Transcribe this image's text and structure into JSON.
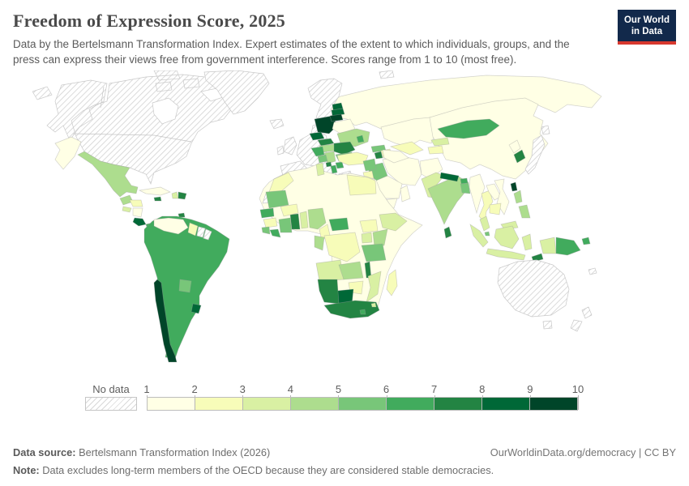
{
  "header": {
    "title": "Freedom of Expression Score, 2025",
    "subtitle": "Data by the Bertelsmann Transformation Index. Expert estimates of the extent to which individuals, groups, and the press can express their views free from government interference. Scores range from 1 to 10 (most free).",
    "logo": {
      "line1": "Our World",
      "line2": "in Data",
      "bg": "#12294b",
      "accent": "#d7382e"
    }
  },
  "legend": {
    "no_data_label": "No data",
    "ticks": [
      "1",
      "2",
      "3",
      "4",
      "5",
      "6",
      "7",
      "8",
      "9",
      "10"
    ],
    "palette": [
      "#ffffe5",
      "#f7fcb9",
      "#d9f0a3",
      "#addd8e",
      "#78c679",
      "#41ab5d",
      "#238443",
      "#006837",
      "#004529"
    ],
    "bin_ranges": [
      "1–2",
      "2–3",
      "3–4",
      "4–5",
      "5–6",
      "6–7",
      "7–8",
      "8–9",
      "9–10"
    ],
    "hatch_line_color": "#d4d4d4"
  },
  "footer": {
    "source_label": "Data source:",
    "source_text": "Bertelsmann Transformation Index (2026)",
    "right_text": "OurWorldinData.org/democracy | CC BY",
    "note_label": "Note:",
    "note_text": "Data excludes long-term members of the OECD because they are considered stable democracies."
  },
  "chart_data": {
    "type": "choropleth",
    "title": "Freedom of Expression Score, 2025",
    "value_range": [
      1,
      10
    ],
    "legend_position": "bottom",
    "no_data": [
      "United States",
      "Canada",
      "Greenland",
      "Iceland",
      "United Kingdom",
      "Ireland",
      "Norway",
      "Sweden",
      "Finland",
      "Denmark",
      "Germany",
      "France",
      "Netherlands",
      "Belgium",
      "Switzerland",
      "Austria",
      "Spain",
      "Portugal",
      "Italy",
      "Greece",
      "Japan",
      "Israel",
      "Australia",
      "New Zealand",
      "New Caledonia",
      "Western Sahara",
      "Suriname",
      "French Guiana"
    ],
    "bins": [
      {
        "range": "1–2",
        "color": "#ffffe5",
        "countries": [
          "Russia",
          "China",
          "Belarus",
          "Venezuela",
          "Cuba",
          "Nicaragua",
          "Saudi Arabia",
          "Iran",
          "Afghanistan",
          "Yemen",
          "Oman",
          "Myanmar",
          "Laos",
          "Vietnam",
          "North Korea",
          "Kazakhstan",
          "Turkmenistan",
          "Algeria",
          "Libya",
          "Mali",
          "Niger",
          "Chad",
          "Sudan",
          "Eritrea",
          "Somalia"
        ]
      },
      {
        "range": "2–3",
        "color": "#f7fcb9",
        "countries": [
          "Turkey",
          "Morocco",
          "Egypt",
          "Jordan",
          "Azerbaijan",
          "Uzbekistan",
          "Tajikistan",
          "Thailand",
          "Cambodia",
          "Honduras",
          "Guyana",
          "Zimbabwe",
          "Madagascar",
          "Burkina Faso",
          "Guinea",
          "Cameroon",
          "Democratic Republic of Congo",
          "South Sudan"
        ]
      },
      {
        "range": "3–4",
        "color": "#d9f0a3",
        "countries": [
          "Pakistan",
          "Kyrgyzstan",
          "Tunisia",
          "Benin",
          "Togo",
          "Ethiopia",
          "Uganda",
          "Angola",
          "Malaysia",
          "Indonesia",
          "Mozambique",
          "Eswatini",
          "El Salvador",
          "Haiti"
        ]
      },
      {
        "range": "4–5",
        "color": "#addd8e",
        "countries": [
          "India",
          "Ukraine",
          "Serbia",
          "Hungary",
          "Nigeria",
          "Kenya",
          "Zambia",
          "Philippines",
          "Mexico",
          "Guatemala",
          "Gabon",
          "Republic of the Congo"
        ]
      },
      {
        "range": "5–6",
        "color": "#78c679",
        "countries": [
          "Paraguay",
          "Bulgaria",
          "Bosnia and Herzegovina",
          "Georgia",
          "Syria",
          "Iraq",
          "Bangladesh",
          "Tanzania",
          "Cote d'Ivoire",
          "Sierra Leone",
          "Mauritania",
          "Singapore"
        ]
      },
      {
        "range": "6–7",
        "color": "#41ab5d",
        "countries": [
          "Colombia",
          "Ecuador",
          "Peru",
          "Brazil",
          "Bolivia",
          "Argentina",
          "Panama",
          "Mongolia",
          "Papua New Guinea",
          "Bhutan",
          "Senegal",
          "Liberia",
          "Central African Republic",
          "Moldova",
          "North Macedonia",
          "Croatia",
          "Albania",
          "Lesotho"
        ]
      },
      {
        "range": "7–8",
        "color": "#238443",
        "countries": [
          "Ghana",
          "South Africa",
          "Namibia",
          "Malawi",
          "Sri Lanka",
          "South Korea",
          "Jamaica",
          "Dominican Republic",
          "Romania",
          "Slovakia",
          "Armenia",
          "Montenegro",
          "Timor-Leste",
          "Trinidad and Tobago"
        ]
      },
      {
        "range": "8–9",
        "color": "#006837",
        "countries": [
          "Nepal",
          "Botswana",
          "Uruguay",
          "Costa Rica",
          "Estonia",
          "Latvia",
          "Czechia"
        ]
      },
      {
        "range": "9–10",
        "color": "#004529",
        "countries": [
          "Chile",
          "Taiwan",
          "Poland",
          "Lithuania"
        ]
      }
    ]
  },
  "map": {
    "sea_color": "#ffffff",
    "border_color": "#c9c9c9",
    "country_border_color": "#9e9e9e",
    "shapes": [
      [
        "canada-usa",
        0
      ],
      [
        "hudson-bay",
        -1
      ],
      [
        "us-canada-border",
        -2
      ],
      [
        "greenland",
        0
      ],
      [
        "arctic-fragment",
        0
      ],
      [
        "iceland",
        0
      ],
      [
        "kamchatka",
        1
      ],
      [
        "russia",
        1
      ],
      [
        "svalbard",
        0
      ],
      [
        "kazakhstan",
        1
      ],
      [
        "china",
        1
      ],
      [
        "mongolia",
        6
      ],
      [
        "north-korea",
        1
      ],
      [
        "south-korea",
        7
      ],
      [
        "japan",
        0
      ],
      [
        "taiwan",
        9
      ],
      [
        "western-europe",
        0
      ],
      [
        "uk-ireland",
        0
      ],
      [
        "poland",
        9
      ],
      [
        "estonia",
        8
      ],
      [
        "latvia",
        8
      ],
      [
        "lithuania",
        9
      ],
      [
        "belarus",
        1
      ],
      [
        "ukraine",
        4
      ],
      [
        "moldova",
        6
      ],
      [
        "czechia",
        8
      ],
      [
        "slovakia",
        7
      ],
      [
        "hungary",
        4
      ],
      [
        "romania",
        7
      ],
      [
        "bulgaria",
        5
      ],
      [
        "serbia",
        4
      ],
      [
        "croatia",
        6
      ],
      [
        "bosnia",
        5
      ],
      [
        "montenegro",
        7
      ],
      [
        "north-macedonia",
        6
      ],
      [
        "albania",
        6
      ],
      [
        "turkey",
        2
      ],
      [
        "georgia",
        5
      ],
      [
        "armenia",
        7
      ],
      [
        "azerbaijan",
        2
      ],
      [
        "iran",
        1
      ],
      [
        "saudi-arabia",
        1
      ],
      [
        "yemen",
        1
      ],
      [
        "oman",
        1
      ],
      [
        "iraq",
        5
      ],
      [
        "syria",
        5
      ],
      [
        "jordan",
        2
      ],
      [
        "afghanistan",
        1
      ],
      [
        "pakistan",
        3
      ],
      [
        "uzbekistan",
        2
      ],
      [
        "turkmenistan",
        1
      ],
      [
        "kyrgyzstan",
        3
      ],
      [
        "tajikistan",
        2
      ],
      [
        "india",
        4
      ],
      [
        "nepal",
        8
      ],
      [
        "bhutan",
        6
      ],
      [
        "bangladesh",
        5
      ],
      [
        "sri-lanka",
        7
      ],
      [
        "myanmar",
        1
      ],
      [
        "thailand",
        2
      ],
      [
        "laos",
        1
      ],
      [
        "vietnam",
        1
      ],
      [
        "cambodia",
        2
      ],
      [
        "malaysia",
        3
      ],
      [
        "singapore",
        5
      ],
      [
        "indonesia",
        3
      ],
      [
        "papua-new-guinea",
        6
      ],
      [
        "timor-leste",
        7
      ],
      [
        "philippines",
        4
      ],
      [
        "australia",
        0
      ],
      [
        "new-zealand",
        0
      ],
      [
        "new-caledonia",
        0
      ],
      [
        "africa-mainland",
        1
      ],
      [
        "morocco",
        2
      ],
      [
        "western-sahara",
        0
      ],
      [
        "tunisia",
        3
      ],
      [
        "egypt",
        2
      ],
      [
        "mauritania",
        5
      ],
      [
        "senegal",
        6
      ],
      [
        "guinea",
        2
      ],
      [
        "sierra-leone",
        5
      ],
      [
        "liberia",
        6
      ],
      [
        "cote-divoire",
        5
      ],
      [
        "ghana",
        7
      ],
      [
        "togo-benin",
        3
      ],
      [
        "burkina-faso",
        2
      ],
      [
        "nigeria",
        4
      ],
      [
        "cameroon",
        2
      ],
      [
        "central-african-republic",
        6
      ],
      [
        "south-sudan",
        2
      ],
      [
        "ethiopia",
        3
      ],
      [
        "uganda",
        3
      ],
      [
        "kenya",
        4
      ],
      [
        "tanzania",
        5
      ],
      [
        "dr-congo",
        2
      ],
      [
        "gabon-congo",
        4
      ],
      [
        "angola",
        3
      ],
      [
        "zambia",
        4
      ],
      [
        "malawi",
        7
      ],
      [
        "mozambique",
        3
      ],
      [
        "zimbabwe",
        2
      ],
      [
        "botswana",
        8
      ],
      [
        "namibia",
        7
      ],
      [
        "south-africa",
        7
      ],
      [
        "lesotho",
        6
      ],
      [
        "eswatini",
        3
      ],
      [
        "madagascar",
        2
      ],
      [
        "mexico",
        4
      ],
      [
        "guatemala",
        4
      ],
      [
        "honduras",
        2
      ],
      [
        "el-salvador",
        3
      ],
      [
        "nicaragua",
        1
      ],
      [
        "costa-rica",
        8
      ],
      [
        "panama",
        6
      ],
      [
        "cuba",
        1
      ],
      [
        "jamaica",
        7
      ],
      [
        "haiti",
        3
      ],
      [
        "dominican-republic",
        7
      ],
      [
        "trinidad-and-tobago",
        7
      ],
      [
        "south-america-core",
        6
      ],
      [
        "venezuela",
        1
      ],
      [
        "guyana",
        2
      ],
      [
        "suriname",
        0
      ],
      [
        "french-guiana",
        0
      ],
      [
        "paraguay",
        5
      ],
      [
        "uruguay",
        8
      ],
      [
        "chile",
        9
      ]
    ]
  }
}
